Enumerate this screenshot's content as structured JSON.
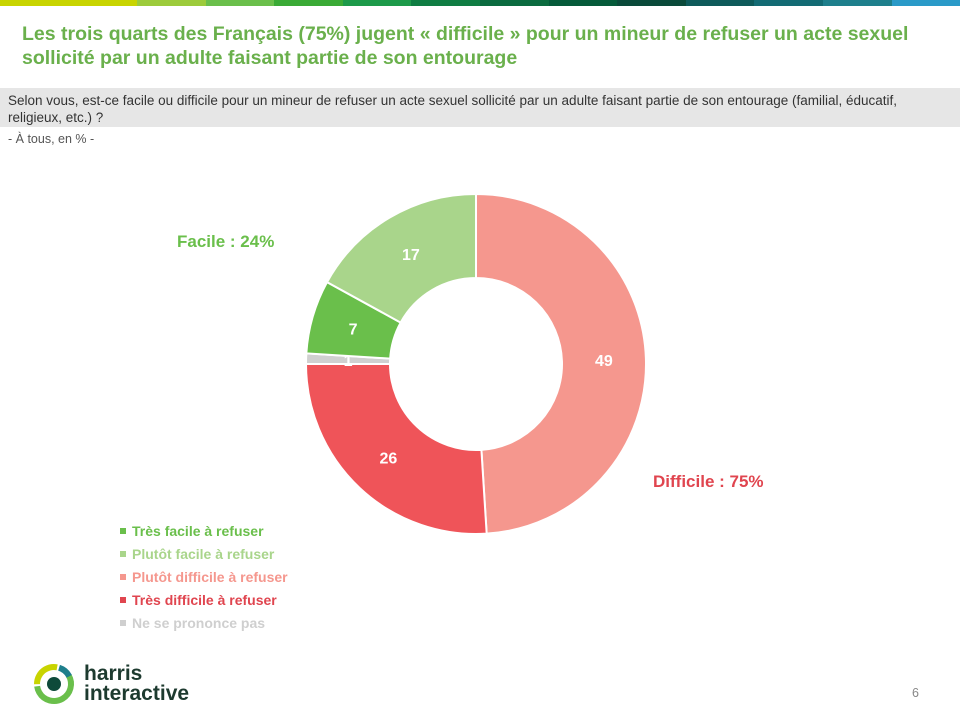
{
  "header": {
    "stripe_colors": [
      "#c8d400",
      "#c8d400",
      "#9ccb3b",
      "#6abf4b",
      "#3aaa35",
      "#1d9a4a",
      "#0f7d43",
      "#0b6b3f",
      "#055a3a",
      "#0a4a3a",
      "#0e5a5a",
      "#136b74",
      "#1e7f8c",
      "#2a9ac8"
    ],
    "title": "Les trois quarts des Français (75%) jugent « difficile » pour un mineur de refuser un acte sexuel sollicité par un adulte faisant partie de son entourage",
    "question": "Selon vous, est-ce facile ou difficile pour un mineur de refuser un acte sexuel sollicité par un adulte faisant partie de son entourage (familial, éducatif, religieux, etc.) ?",
    "base": "- À tous, en % -"
  },
  "chart_data": {
    "type": "pie",
    "donut": true,
    "start_angle_deg": 0,
    "direction": "clockwise",
    "slices": [
      {
        "name": "Plutôt difficile à refuser",
        "value": 49,
        "label": "49",
        "color": "#f5978e"
      },
      {
        "name": "Très difficile à refuser",
        "value": 26,
        "label": "26",
        "color": "#ef5459"
      },
      {
        "name": "Ne se prononce pas",
        "value": 1,
        "label": "1",
        "color": "#d0d0d0"
      },
      {
        "name": "Très facile à refuser",
        "value": 7,
        "label": "7",
        "color": "#6abf4b"
      },
      {
        "name": "Plutôt facile à refuser",
        "value": 17,
        "label": "17",
        "color": "#a9d58b"
      }
    ],
    "group_labels": {
      "facile": "Facile : 24%",
      "difficile": "Difficile : 75%"
    },
    "legend": [
      {
        "label": "Très facile à refuser",
        "color": "#6abf4b"
      },
      {
        "label": "Plutôt facile à refuser",
        "color": "#a9d58b"
      },
      {
        "label": "Plutôt difficile à refuser",
        "color": "#f5978e"
      },
      {
        "label": "Très difficile à refuser",
        "color": "#e0454f"
      },
      {
        "label": "Ne se prononce pas",
        "color": "#cfcfcf"
      }
    ]
  },
  "footer": {
    "logo_line1": "harris",
    "logo_line2": "interactive",
    "page_number": "6"
  }
}
